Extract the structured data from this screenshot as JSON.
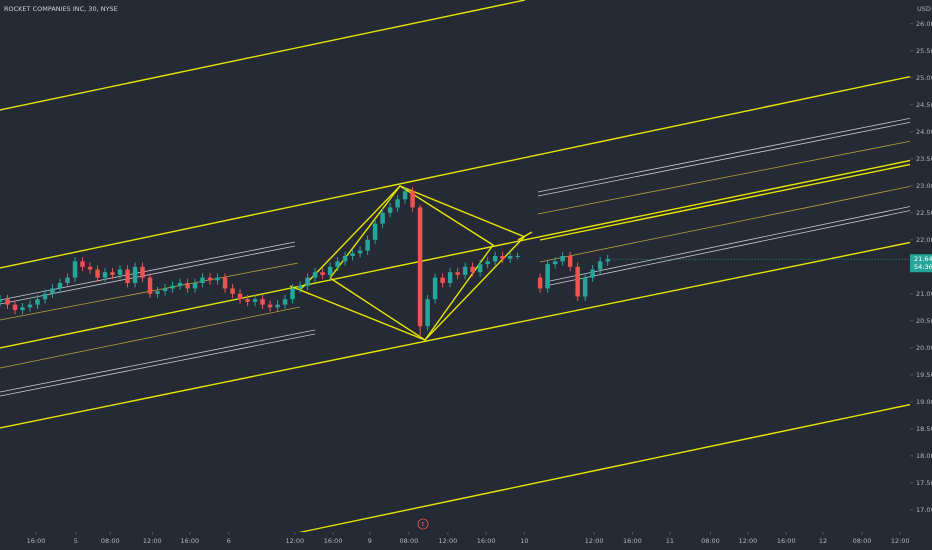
{
  "chart_data": {
    "type": "candlestick",
    "title": "ROCKET COMPANIES INC, 30, NYSE",
    "currency": "USD",
    "countdown": "54:36",
    "up_color": "#26a69a",
    "down_color": "#ef5350",
    "ylim": [
      16.59,
      26.44
    ],
    "yticks": [
      {
        "value": 26,
        "label": "26.00"
      },
      {
        "value": 25.5,
        "label": "25.50"
      },
      {
        "value": 25,
        "label": "25.00"
      },
      {
        "value": 24.5,
        "label": "24.50"
      },
      {
        "value": 24,
        "label": "24.00"
      },
      {
        "value": 23.5,
        "label": "23.50"
      },
      {
        "value": 23,
        "label": "23.00"
      },
      {
        "value": 22.5,
        "label": "22.50"
      },
      {
        "value": 22,
        "label": "22.00"
      },
      {
        "value": 21.5,
        "label": "21.50"
      },
      {
        "value": 21,
        "label": "21.00"
      },
      {
        "value": 20.5,
        "label": "20.50"
      },
      {
        "value": 20,
        "label": "20.00"
      },
      {
        "value": 19.5,
        "label": "19.50"
      },
      {
        "value": 19,
        "label": "19.00"
      },
      {
        "value": 18.5,
        "label": "18.50"
      },
      {
        "value": 18,
        "label": "18.00"
      },
      {
        "value": 17.5,
        "label": "17.50"
      },
      {
        "value": 17,
        "label": "17.00"
      }
    ],
    "xlim": [
      0,
      121.3
    ],
    "xticks": [
      {
        "value": 4.8,
        "label": "16:00"
      },
      {
        "value": 10.1,
        "label": "5"
      },
      {
        "value": 14.7,
        "label": "08:00"
      },
      {
        "value": 20.3,
        "label": "12:00"
      },
      {
        "value": 25.3,
        "label": "16:00"
      },
      {
        "value": 30.5,
        "label": "6"
      },
      {
        "value": 39.3,
        "label": "12:00"
      },
      {
        "value": 44.4,
        "label": "16:00"
      },
      {
        "value": 49.3,
        "label": "9"
      },
      {
        "value": 54.5,
        "label": "08:00"
      },
      {
        "value": 59.7,
        "label": "12:00"
      },
      {
        "value": 64.8,
        "label": "16:00"
      },
      {
        "value": 69.9,
        "label": "10"
      },
      {
        "value": 79.2,
        "label": "12:00"
      },
      {
        "value": 84.3,
        "label": "16:00"
      },
      {
        "value": 89.3,
        "label": "11"
      },
      {
        "value": 94.7,
        "label": "08:00"
      },
      {
        "value": 99.7,
        "label": "12:00"
      },
      {
        "value": 104.8,
        "label": "16:00"
      },
      {
        "value": 109.7,
        "label": "12"
      },
      {
        "value": 114.9,
        "label": "08:00"
      },
      {
        "value": 120,
        "label": "12:00"
      }
    ],
    "x": [
      0,
      1,
      2,
      3,
      4,
      5,
      6,
      7,
      8,
      9,
      10,
      11,
      12,
      13,
      14,
      15,
      16,
      17,
      18,
      19,
      20,
      21,
      22,
      23,
      24,
      25,
      26,
      27,
      28,
      29,
      30,
      31,
      32,
      33,
      34,
      35,
      36,
      37,
      38,
      39,
      40,
      41,
      42,
      43,
      44,
      45,
      46,
      47,
      48,
      49,
      50,
      51,
      52,
      53,
      54,
      55,
      56,
      57,
      58,
      59,
      60,
      61,
      62,
      63,
      64,
      65,
      66,
      67,
      68,
      69,
      72,
      73,
      74,
      75,
      76,
      77,
      78,
      79,
      80,
      81
    ],
    "ohlc": [
      [
        20.85,
        20.98,
        20.77,
        20.9
      ],
      [
        20.9,
        20.98,
        20.72,
        20.8
      ],
      [
        20.8,
        20.88,
        20.62,
        20.7
      ],
      [
        20.7,
        20.83,
        20.62,
        20.75
      ],
      [
        20.75,
        20.88,
        20.67,
        20.8
      ],
      [
        20.8,
        20.98,
        20.72,
        20.9
      ],
      [
        20.9,
        21.08,
        20.82,
        21.0
      ],
      [
        21.0,
        21.18,
        20.92,
        21.1
      ],
      [
        21.1,
        21.28,
        21.02,
        21.2
      ],
      [
        21.2,
        21.38,
        21.12,
        21.3
      ],
      [
        21.3,
        21.68,
        21.22,
        21.6
      ],
      [
        21.6,
        21.68,
        21.42,
        21.5
      ],
      [
        21.5,
        21.58,
        21.37,
        21.45
      ],
      [
        21.45,
        21.53,
        21.22,
        21.3
      ],
      [
        21.3,
        21.48,
        21.22,
        21.4
      ],
      [
        21.4,
        21.48,
        21.27,
        21.35
      ],
      [
        21.35,
        21.53,
        21.27,
        21.45
      ],
      [
        21.45,
        21.53,
        21.12,
        21.2
      ],
      [
        21.2,
        21.58,
        21.12,
        21.5
      ],
      [
        21.5,
        21.58,
        21.22,
        21.3
      ],
      [
        21.3,
        21.38,
        20.92,
        21.0
      ],
      [
        21.0,
        21.13,
        20.92,
        21.05
      ],
      [
        21.05,
        21.18,
        20.97,
        21.1
      ],
      [
        21.1,
        21.23,
        21.02,
        21.15
      ],
      [
        21.15,
        21.28,
        21.07,
        21.2
      ],
      [
        21.2,
        21.28,
        21.02,
        21.1
      ],
      [
        21.1,
        21.28,
        21.02,
        21.2
      ],
      [
        21.2,
        21.38,
        21.12,
        21.3
      ],
      [
        21.3,
        21.38,
        21.17,
        21.25
      ],
      [
        21.25,
        21.38,
        21.17,
        21.3
      ],
      [
        21.3,
        21.38,
        21.02,
        21.1
      ],
      [
        21.1,
        21.18,
        20.92,
        21.0
      ],
      [
        21.0,
        21.08,
        20.82,
        20.9
      ],
      [
        20.9,
        20.98,
        20.77,
        20.85
      ],
      [
        20.85,
        20.98,
        20.77,
        20.9
      ],
      [
        20.9,
        20.98,
        20.72,
        20.8
      ],
      [
        20.8,
        20.88,
        20.67,
        20.75
      ],
      [
        20.75,
        20.88,
        20.67,
        20.8
      ],
      [
        20.8,
        20.98,
        20.72,
        20.9
      ],
      [
        20.9,
        21.18,
        20.82,
        21.1
      ],
      [
        21.1,
        21.23,
        21.02,
        21.15
      ],
      [
        21.15,
        21.38,
        21.07,
        21.3
      ],
      [
        21.3,
        21.48,
        21.22,
        21.4
      ],
      [
        21.4,
        21.48,
        21.27,
        21.35
      ],
      [
        21.35,
        21.58,
        21.27,
        21.5
      ],
      [
        21.5,
        21.68,
        21.42,
        21.6
      ],
      [
        21.6,
        21.78,
        21.52,
        21.7
      ],
      [
        21.7,
        21.83,
        21.62,
        21.75
      ],
      [
        21.75,
        21.88,
        21.67,
        21.8
      ],
      [
        21.8,
        22.08,
        21.72,
        22.0
      ],
      [
        22.0,
        22.38,
        21.92,
        22.3
      ],
      [
        22.3,
        22.58,
        22.22,
        22.5
      ],
      [
        22.5,
        22.68,
        22.42,
        22.6
      ],
      [
        22.6,
        22.83,
        22.52,
        22.75
      ],
      [
        22.75,
        22.98,
        22.67,
        22.9
      ],
      [
        22.9,
        22.98,
        22.52,
        22.6
      ],
      [
        22.6,
        22.65,
        20.2,
        20.4
      ],
      [
        20.4,
        20.98,
        20.32,
        20.9
      ],
      [
        20.9,
        21.38,
        20.82,
        21.3
      ],
      [
        21.3,
        21.38,
        21.12,
        21.2
      ],
      [
        21.2,
        21.48,
        21.12,
        21.4
      ],
      [
        21.4,
        21.48,
        21.27,
        21.35
      ],
      [
        21.35,
        21.58,
        21.27,
        21.5
      ],
      [
        21.5,
        21.58,
        21.32,
        21.4
      ],
      [
        21.4,
        21.63,
        21.32,
        21.55
      ],
      [
        21.55,
        21.68,
        21.47,
        21.6
      ],
      [
        21.6,
        21.78,
        21.52,
        21.7
      ],
      [
        21.7,
        21.78,
        21.57,
        21.65
      ],
      [
        21.65,
        21.78,
        21.57,
        21.7
      ],
      [
        21.7,
        21.76,
        21.64,
        21.7
      ],
      [
        21.3,
        21.38,
        21.02,
        21.1
      ],
      [
        21.1,
        21.63,
        21.02,
        21.55
      ],
      [
        21.55,
        21.68,
        21.47,
        21.6
      ],
      [
        21.6,
        21.78,
        21.52,
        21.7
      ],
      [
        21.7,
        21.78,
        21.42,
        21.5
      ],
      [
        21.5,
        21.58,
        20.87,
        20.95
      ],
      [
        20.95,
        21.38,
        20.87,
        21.3
      ],
      [
        21.3,
        21.53,
        21.22,
        21.45
      ],
      [
        21.45,
        21.68,
        21.37,
        21.6
      ],
      [
        21.6,
        21.72,
        21.52,
        21.64
      ]
    ]
  }
}
